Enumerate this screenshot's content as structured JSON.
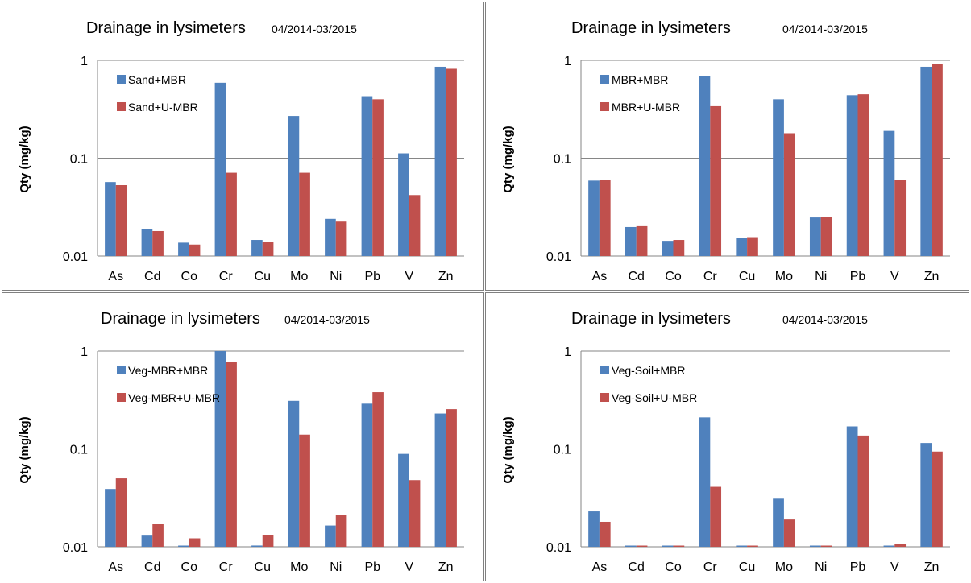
{
  "colors": {
    "series1": "#4F81BD",
    "series2": "#C0504D",
    "grid": "#868686"
  },
  "chart_data": [
    {
      "type": "bar",
      "title": "Drainage in lysimeters",
      "subtitle": "04/2014-03/2015",
      "ylabel": "Qty (mg/kg)",
      "yscale": "log",
      "ylim": [
        0.01,
        1
      ],
      "yticks": [
        {
          "value": 1,
          "label": "1"
        },
        {
          "value": 0.1,
          "label": "0.1"
        },
        {
          "value": 0.01,
          "label": "0.01"
        }
      ],
      "grid": true,
      "legend_position": "top-left",
      "categories": [
        "As",
        "Cd",
        "Co",
        "Cr",
        "Cu",
        "Mo",
        "Ni",
        "Pb",
        "V",
        "Zn"
      ],
      "series": [
        {
          "name": "Sand+MBR",
          "values": [
            0.057,
            0.019,
            0.0137,
            0.59,
            0.0146,
            0.27,
            0.024,
            0.43,
            0.112,
            0.86
          ]
        },
        {
          "name": "Sand+U-MBR",
          "values": [
            0.053,
            0.018,
            0.0131,
            0.071,
            0.0138,
            0.071,
            0.0225,
            0.4,
            0.042,
            0.82
          ]
        }
      ]
    },
    {
      "type": "bar",
      "title": "Drainage in lysimeters",
      "subtitle": "04/2014-03/2015",
      "ylabel": "Qty (mg/kg)",
      "yscale": "log",
      "ylim": [
        0.01,
        1
      ],
      "yticks": [
        {
          "value": 1,
          "label": "1"
        },
        {
          "value": 0.1,
          "label": "0.1"
        },
        {
          "value": 0.01,
          "label": "0.01"
        }
      ],
      "grid": true,
      "legend_position": "top-left",
      "categories": [
        "As",
        "Cd",
        "Co",
        "Cr",
        "Cu",
        "Mo",
        "Ni",
        "Pb",
        "V",
        "Zn"
      ],
      "series": [
        {
          "name": "MBR+MBR",
          "values": [
            0.059,
            0.0198,
            0.0143,
            0.69,
            0.0153,
            0.4,
            0.0248,
            0.44,
            0.19,
            0.86
          ]
        },
        {
          "name": "MBR+U-MBR",
          "values": [
            0.06,
            0.0202,
            0.0146,
            0.34,
            0.0156,
            0.18,
            0.0252,
            0.45,
            0.06,
            0.92
          ]
        }
      ]
    },
    {
      "type": "bar",
      "title": "Drainage in lysimeters",
      "subtitle": "04/2014-03/2015",
      "ylabel": "Qty (mg/kg)",
      "yscale": "log",
      "ylim": [
        0.01,
        1
      ],
      "yticks": [
        {
          "value": 1,
          "label": "1"
        },
        {
          "value": 0.1,
          "label": "0.1"
        },
        {
          "value": 0.01,
          "label": "0.01"
        }
      ],
      "grid": true,
      "legend_position": "top-left",
      "categories": [
        "As",
        "Cd",
        "Co",
        "Cr",
        "Cu",
        "Mo",
        "Ni",
        "Pb",
        "V",
        "Zn"
      ],
      "series": [
        {
          "name": "Veg-MBR+MBR",
          "values": [
            0.039,
            0.013,
            0.0102,
            1.0,
            0.0103,
            0.31,
            0.0165,
            0.29,
            0.089,
            0.23
          ]
        },
        {
          "name": "Veg-MBR+U-MBR",
          "values": [
            0.05,
            0.017,
            0.0122,
            0.78,
            0.0131,
            0.14,
            0.021,
            0.38,
            0.048,
            0.255
          ]
        }
      ]
    },
    {
      "type": "bar",
      "title": "Drainage in lysimeters",
      "subtitle": "04/2014-03/2015",
      "ylabel": "Qty (mg/kg)",
      "yscale": "log",
      "ylim": [
        0.01,
        1
      ],
      "yticks": [
        {
          "value": 1,
          "label": "1"
        },
        {
          "value": 0.1,
          "label": "0.1"
        },
        {
          "value": 0.01,
          "label": "0.01"
        }
      ],
      "grid": true,
      "legend_position": "top-left",
      "categories": [
        "As",
        "Cd",
        "Co",
        "Cr",
        "Cu",
        "Mo",
        "Ni",
        "Pb",
        "V",
        "Zn"
      ],
      "series": [
        {
          "name": "Veg-Soil+MBR",
          "values": [
            0.023,
            0.0097,
            0.0097,
            0.21,
            0.0097,
            0.031,
            0.0097,
            0.17,
            0.0097,
            0.115
          ]
        },
        {
          "name": "Veg-Soil+U-MBR",
          "values": [
            0.018,
            0.0097,
            0.0097,
            0.041,
            0.0097,
            0.019,
            0.0097,
            0.137,
            0.0106,
            0.094
          ]
        }
      ]
    }
  ]
}
